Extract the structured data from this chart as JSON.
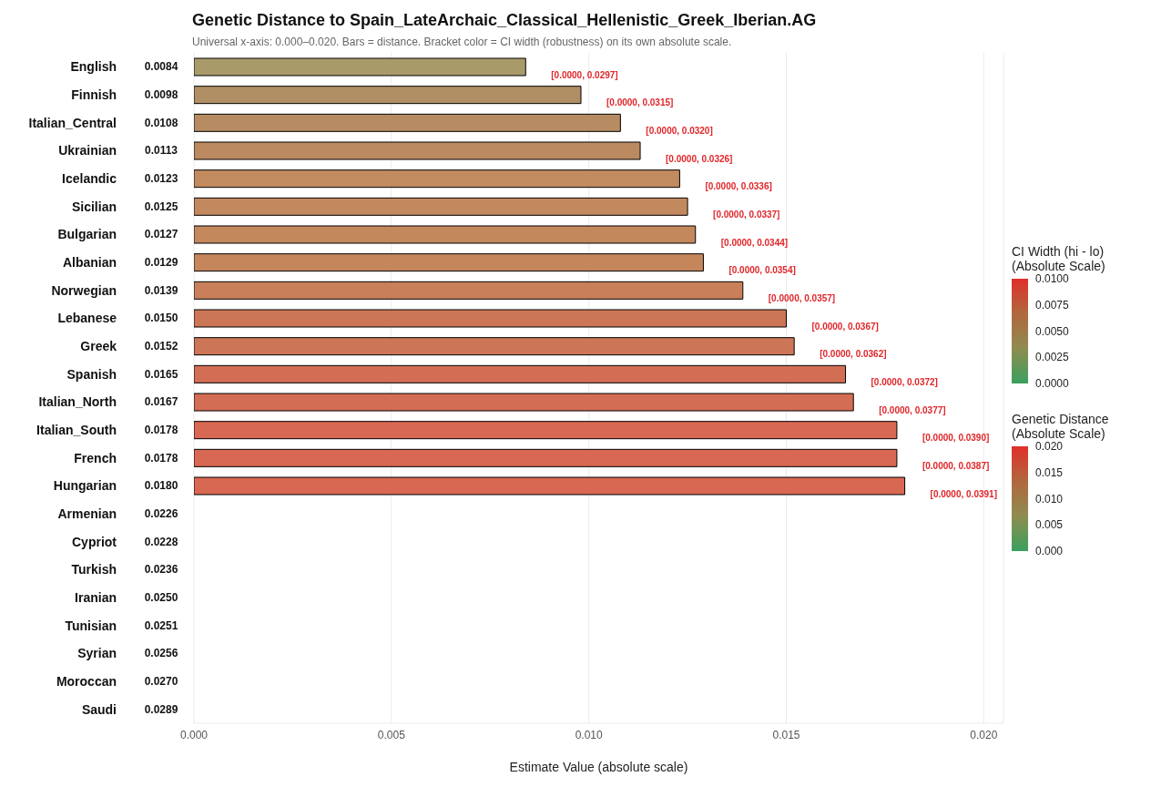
{
  "chart_data": {
    "type": "bar",
    "orientation": "horizontal",
    "title": "Genetic Distance to Spain_LateArchaic_Classical_Hellenistic_Greek_Iberian.AG",
    "subtitle": "Universal x-axis: 0.000–0.020. Bars = distance. Bracket color = CI width (robustness) on its own absolute scale.",
    "xlabel": "Estimate Value (absolute scale)",
    "categories": [
      "English",
      "Finnish",
      "Italian_Central",
      "Ukrainian",
      "Icelandic",
      "Sicilian",
      "Bulgarian",
      "Albanian",
      "Norwegian",
      "Lebanese",
      "Greek",
      "Spanish",
      "Italian_North",
      "Italian_South",
      "French",
      "Hungarian",
      "Armenian",
      "Cypriot",
      "Turkish",
      "Iranian",
      "Tunisian",
      "Syrian",
      "Moroccan",
      "Saudi"
    ],
    "values": [
      0.0084,
      0.0098,
      0.0108,
      0.0113,
      0.0123,
      0.0125,
      0.0127,
      0.0129,
      0.0139,
      0.015,
      0.0152,
      0.0165,
      0.0167,
      0.0178,
      0.0178,
      0.018,
      null,
      null,
      null,
      null,
      null,
      null,
      null,
      null
    ],
    "value_labels": [
      "0.0084",
      "0.0098",
      "0.0108",
      "0.0113",
      "0.0123",
      "0.0125",
      "0.0127",
      "0.0129",
      "0.0139",
      "0.0150",
      "0.0152",
      "0.0165",
      "0.0167",
      "0.0178",
      "0.0178",
      "0.0180",
      "0.0226",
      "0.0228",
      "0.0236",
      "0.0250",
      "0.0251",
      "0.0256",
      "0.0270",
      "0.0289"
    ],
    "colors": [
      "#a99a6a",
      "#b08f64",
      "#b78c62",
      "#bb8a60",
      "#c28a5f",
      "#c3895e",
      "#c4885d",
      "#c6865c",
      "#c9805a",
      "#cc7658",
      "#cd7557",
      "#d26e54",
      "#d36d54",
      "#d86853",
      "#d86853",
      "#d96853",
      null,
      null,
      null,
      null,
      null,
      null,
      null,
      null
    ],
    "xlim": [
      0,
      0.0205
    ],
    "xticks": [
      {
        "value": 0,
        "label": "0.000"
      },
      {
        "value": 0.005,
        "label": "0.005"
      },
      {
        "value": 0.01,
        "label": "0.010"
      },
      {
        "value": 0.015,
        "label": "0.015"
      },
      {
        "value": 0.02,
        "label": "0.020"
      }
    ],
    "grid": "x",
    "clabel": "Genetic Distance\n(Absolute Scale)",
    "clim": [
      0,
      0.02
    ],
    "cticks": [
      {
        "value": 0,
        "label": "0.000"
      },
      {
        "value": 0.005,
        "label": "0.005"
      },
      {
        "value": 0.01,
        "label": "0.010"
      },
      {
        "value": 0.015,
        "label": "0.015"
      },
      {
        "value": 0.02,
        "label": "0.020"
      }
    ],
    "annotations": [
      "CI Width (hi - lo)\n(Absolute Scale)",
      "0.0100",
      "0.0075",
      "0.0050",
      "0.0025",
      "0.0000",
      "[0.0000, 0.0297]",
      "[0.0000, 0.0315]",
      "[0.0000, 0.0320]",
      "[0.0000, 0.0326]",
      "[0.0000, 0.0336]",
      "[0.0000, 0.0337]",
      "[0.0000, 0.0344]",
      "[0.0000, 0.0354]",
      "[0.0000, 0.0357]",
      "[0.0000, 0.0367]",
      "[0.0000, 0.0362]",
      "[0.0000, 0.0372]",
      "[0.0000, 0.0377]",
      "[0.0000, 0.0390]",
      "[0.0000, 0.0387]",
      "[0.0000, 0.0391]"
    ]
  }
}
